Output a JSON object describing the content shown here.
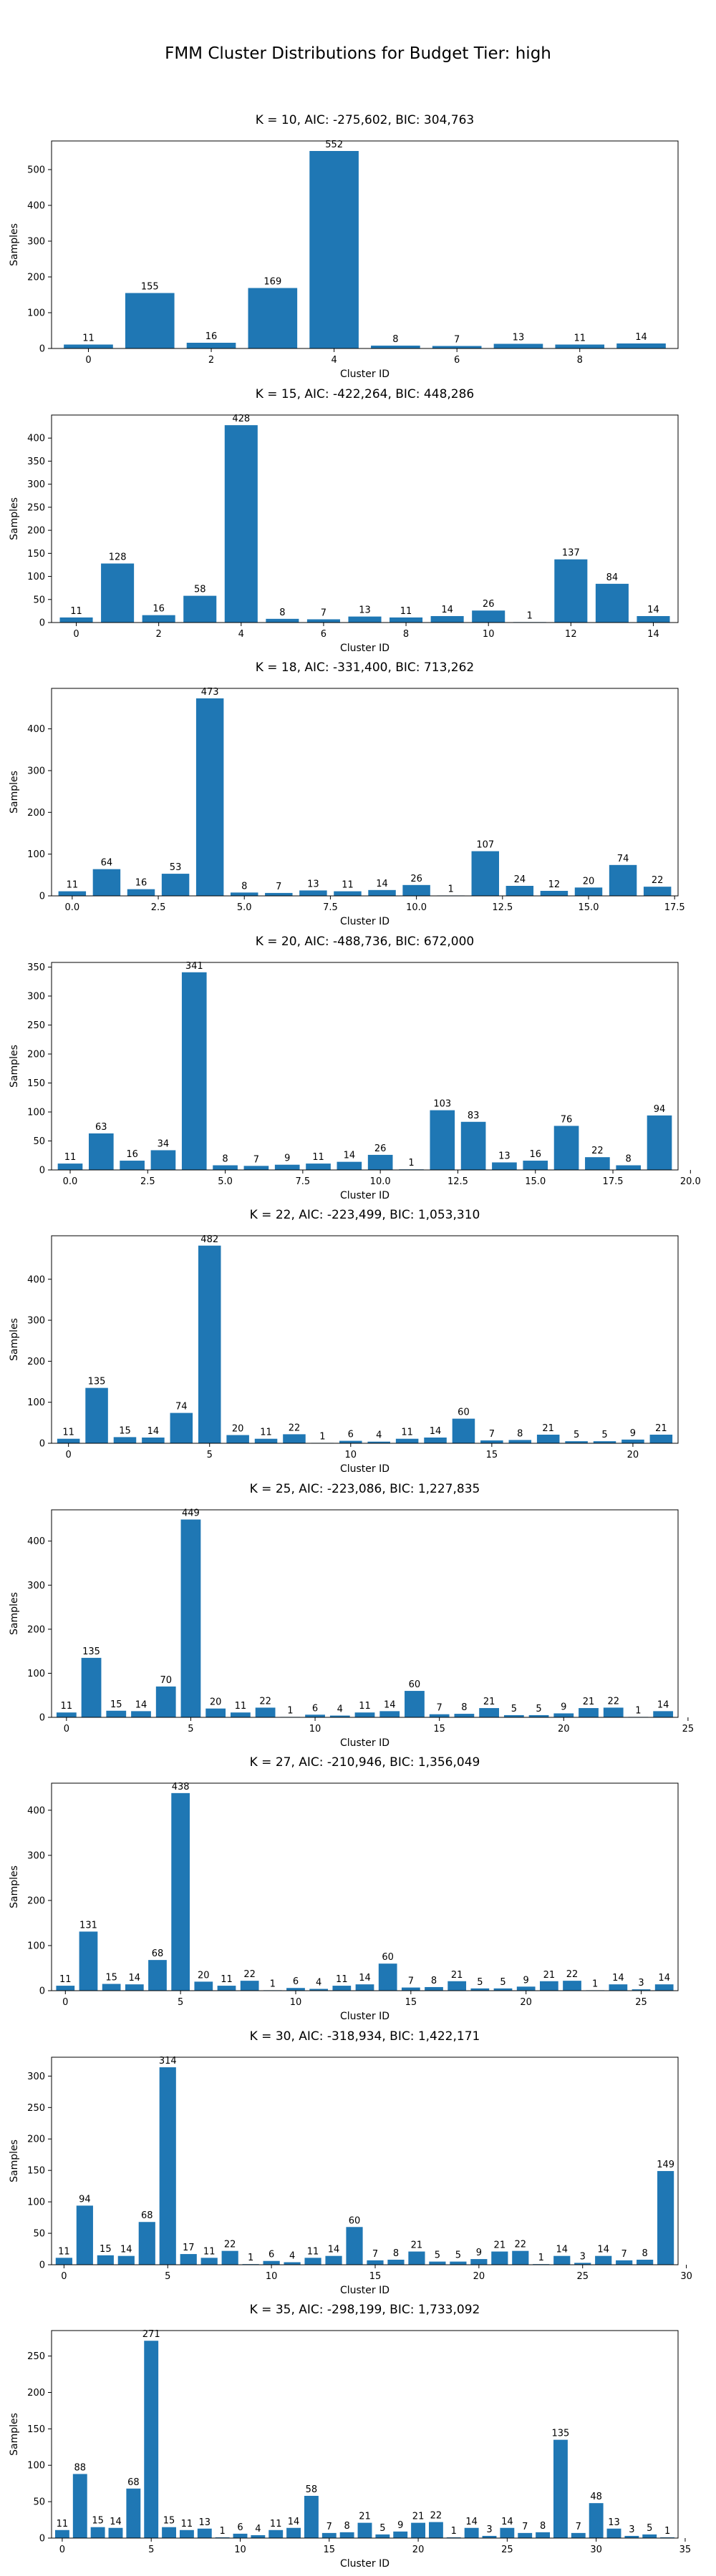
{
  "figure": {
    "suptitle": "FMM Cluster Distributions for Budget Tier: high",
    "xlabel": "Cluster ID",
    "ylabel": "Samples",
    "bar_color": "#1f77b4"
  },
  "chart_data": [
    {
      "type": "bar",
      "title": "K = 10, AIC: -275,602, BIC: 304,763",
      "xlabel": "Cluster ID",
      "ylabel": "Samples",
      "x": [
        0,
        1,
        2,
        3,
        4,
        5,
        6,
        7,
        8,
        9
      ],
      "values": [
        11,
        155,
        16,
        169,
        552,
        8,
        7,
        13,
        11,
        14
      ],
      "xlim": [
        -0.6,
        9.6
      ],
      "xticks": [
        0,
        2,
        4,
        6,
        8
      ],
      "ylim": [
        0,
        580
      ],
      "yticks": [
        0,
        100,
        200,
        300,
        400,
        500
      ],
      "grid": false
    },
    {
      "type": "bar",
      "title": "K = 15, AIC: -422,264, BIC: 448,286",
      "xlabel": "Cluster ID",
      "ylabel": "Samples",
      "x": [
        0,
        1,
        2,
        3,
        4,
        5,
        6,
        7,
        8,
        9,
        10,
        11,
        12,
        13,
        14
      ],
      "values": [
        11,
        128,
        16,
        58,
        428,
        8,
        7,
        13,
        11,
        14,
        26,
        1,
        137,
        84,
        14
      ],
      "xlim": [
        -0.6,
        14.6
      ],
      "xticks": [
        0,
        2,
        4,
        6,
        8,
        10,
        12,
        14
      ],
      "ylim": [
        0,
        450
      ],
      "yticks": [
        0,
        50,
        100,
        150,
        200,
        250,
        300,
        350,
        400
      ],
      "grid": false
    },
    {
      "type": "bar",
      "title": "K = 18, AIC: -331,400, BIC: 713,262",
      "xlabel": "Cluster ID",
      "ylabel": "Samples",
      "x": [
        0,
        1,
        2,
        3,
        4,
        5,
        6,
        7,
        8,
        9,
        10,
        11,
        12,
        13,
        14,
        15,
        16,
        17
      ],
      "values": [
        11,
        64,
        16,
        53,
        473,
        8,
        7,
        13,
        11,
        14,
        26,
        1,
        107,
        24,
        12,
        20,
        74,
        22
      ],
      "xlim": [
        -0.6,
        17.6
      ],
      "xticks": [
        0,
        2.5,
        5,
        7.5,
        10,
        12.5,
        15,
        17.5
      ],
      "xticklabels": [
        "0.0",
        "2.5",
        "5.0",
        "7.5",
        "10.0",
        "12.5",
        "15.0",
        "17.5"
      ],
      "ylim": [
        0,
        497
      ],
      "yticks": [
        0,
        100,
        200,
        300,
        400
      ],
      "grid": false
    },
    {
      "type": "bar",
      "title": "K = 20, AIC: -488,736, BIC: 672,000",
      "xlabel": "Cluster ID",
      "ylabel": "Samples",
      "x": [
        0,
        1,
        2,
        3,
        4,
        5,
        6,
        7,
        8,
        9,
        10,
        11,
        12,
        13,
        14,
        15,
        16,
        17,
        18,
        19
      ],
      "values": [
        11,
        63,
        16,
        34,
        341,
        8,
        7,
        9,
        11,
        14,
        26,
        1,
        103,
        83,
        13,
        16,
        76,
        22,
        8,
        94
      ],
      "xlim": [
        -0.6,
        19.6
      ],
      "xticks": [
        0,
        2.5,
        5,
        7.5,
        10,
        12.5,
        15,
        17.5,
        20
      ],
      "xticklabels": [
        "0.0",
        "2.5",
        "5.0",
        "7.5",
        "10.0",
        "12.5",
        "15.0",
        "17.5",
        "20.0"
      ],
      "ylim": [
        0,
        358
      ],
      "yticks": [
        0,
        50,
        100,
        150,
        200,
        250,
        300,
        350
      ],
      "grid": false
    },
    {
      "type": "bar",
      "title": "K = 22, AIC: -223,499, BIC: 1,053,310",
      "xlabel": "Cluster ID",
      "ylabel": "Samples",
      "x": [
        0,
        1,
        2,
        3,
        4,
        5,
        6,
        7,
        8,
        9,
        10,
        11,
        12,
        13,
        14,
        15,
        16,
        17,
        18,
        19,
        20,
        21
      ],
      "values": [
        11,
        135,
        15,
        14,
        74,
        482,
        20,
        11,
        22,
        1,
        6,
        4,
        11,
        14,
        60,
        7,
        8,
        21,
        5,
        5,
        9,
        21
      ],
      "xlim": [
        -0.6,
        21.6
      ],
      "xticks": [
        0,
        5,
        10,
        15,
        20
      ],
      "ylim": [
        0,
        506
      ],
      "yticks": [
        0,
        100,
        200,
        300,
        400
      ],
      "grid": false
    },
    {
      "type": "bar",
      "title": "K = 25, AIC: -223,086, BIC: 1,227,835",
      "xlabel": "Cluster ID",
      "ylabel": "Samples",
      "x": [
        0,
        1,
        2,
        3,
        4,
        5,
        6,
        7,
        8,
        9,
        10,
        11,
        12,
        13,
        14,
        15,
        16,
        17,
        18,
        19,
        20,
        21,
        22,
        23,
        24
      ],
      "values": [
        11,
        135,
        15,
        14,
        70,
        449,
        20,
        11,
        22,
        1,
        6,
        4,
        11,
        14,
        60,
        7,
        8,
        21,
        5,
        5,
        9,
        21,
        22,
        1,
        14
      ],
      "xlim": [
        -0.6,
        24.6
      ],
      "xticks": [
        0,
        5,
        10,
        15,
        20,
        25
      ],
      "ylim": [
        0,
        471
      ],
      "yticks": [
        0,
        100,
        200,
        300,
        400
      ],
      "grid": false
    },
    {
      "type": "bar",
      "title": "K = 27, AIC: -210,946, BIC: 1,356,049",
      "xlabel": "Cluster ID",
      "ylabel": "Samples",
      "x": [
        0,
        1,
        2,
        3,
        4,
        5,
        6,
        7,
        8,
        9,
        10,
        11,
        12,
        13,
        14,
        15,
        16,
        17,
        18,
        19,
        20,
        21,
        22,
        23,
        24,
        25,
        26
      ],
      "values": [
        11,
        131,
        15,
        14,
        68,
        438,
        20,
        11,
        22,
        1,
        6,
        4,
        11,
        14,
        60,
        7,
        8,
        21,
        5,
        5,
        9,
        21,
        22,
        1,
        14,
        3,
        14
      ],
      "xlim": [
        -0.6,
        26.6
      ],
      "xticks": [
        0,
        5,
        10,
        15,
        20,
        25
      ],
      "ylim": [
        0,
        460
      ],
      "yticks": [
        0,
        100,
        200,
        300,
        400
      ],
      "grid": false
    },
    {
      "type": "bar",
      "title": "K = 30, AIC: -318,934, BIC: 1,422,171",
      "xlabel": "Cluster ID",
      "ylabel": "Samples",
      "x": [
        0,
        1,
        2,
        3,
        4,
        5,
        6,
        7,
        8,
        9,
        10,
        11,
        12,
        13,
        14,
        15,
        16,
        17,
        18,
        19,
        20,
        21,
        22,
        23,
        24,
        25,
        26,
        27,
        28,
        29
      ],
      "values": [
        11,
        94,
        15,
        14,
        68,
        314,
        17,
        11,
        22,
        1,
        6,
        4,
        11,
        14,
        60,
        7,
        8,
        21,
        5,
        5,
        9,
        21,
        22,
        1,
        14,
        3,
        14,
        7,
        8,
        149
      ],
      "xlim": [
        -0.6,
        29.6
      ],
      "xticks": [
        0,
        5,
        10,
        15,
        20,
        25,
        30
      ],
      "ylim": [
        0,
        330
      ],
      "yticks": [
        0,
        50,
        100,
        150,
        200,
        250,
        300
      ],
      "grid": false
    },
    {
      "type": "bar",
      "title": "K = 35, AIC: -298,199, BIC: 1,733,092",
      "xlabel": "Cluster ID",
      "ylabel": "Samples",
      "x": [
        0,
        1,
        2,
        3,
        4,
        5,
        6,
        7,
        8,
        9,
        10,
        11,
        12,
        13,
        14,
        15,
        16,
        17,
        18,
        19,
        20,
        21,
        22,
        23,
        24,
        25,
        26,
        27,
        28,
        29,
        30,
        31,
        32,
        33,
        34
      ],
      "values": [
        11,
        88,
        15,
        14,
        68,
        271,
        15,
        11,
        13,
        1,
        6,
        4,
        11,
        14,
        58,
        7,
        8,
        21,
        5,
        9,
        21,
        22,
        1,
        14,
        3,
        14,
        7,
        8,
        135,
        7,
        48,
        13,
        3,
        5,
        1
      ],
      "xlim": [
        -0.6,
        34.6
      ],
      "xticks": [
        0,
        5,
        10,
        15,
        20,
        25,
        30,
        35
      ],
      "ylim": [
        0,
        285
      ],
      "yticks": [
        0,
        50,
        100,
        150,
        200,
        250
      ],
      "grid": false
    }
  ]
}
